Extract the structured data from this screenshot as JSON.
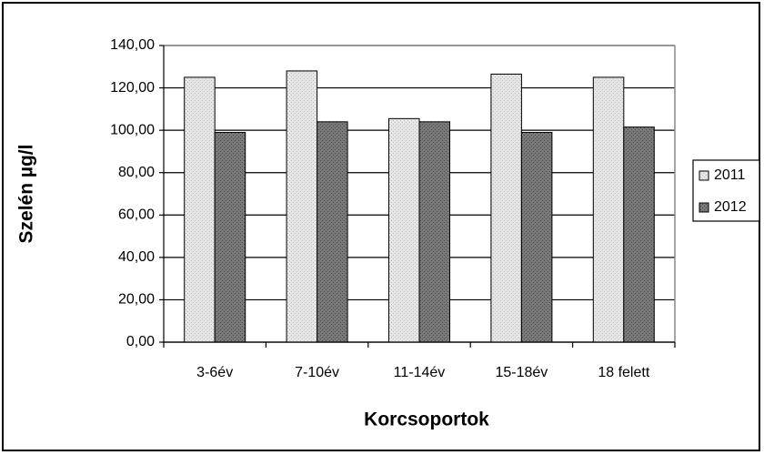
{
  "chart_data": {
    "type": "bar",
    "categories": [
      "3-6év",
      "7-10év",
      "11-14év",
      "15-18év",
      "18 felett"
    ],
    "series": [
      {
        "name": "2011",
        "color": "#e6e6e6",
        "values": [
          125,
          128,
          105.5,
          126.5,
          125
        ]
      },
      {
        "name": "2012",
        "color": "#7a7a7a",
        "values": [
          99,
          104,
          104,
          99,
          101.5
        ]
      }
    ],
    "y_label": "Szelén µg/l",
    "x_label": "Korcsoportok",
    "ylim": [
      0,
      140
    ],
    "yticks": [
      {
        "value": 0,
        "label": "0,00"
      },
      {
        "value": 20,
        "label": "20,00"
      },
      {
        "value": 40,
        "label": "40,00"
      },
      {
        "value": 60,
        "label": "60,00"
      },
      {
        "value": 80,
        "label": "80,00"
      },
      {
        "value": 100,
        "label": "100,00"
      },
      {
        "value": 120,
        "label": "120,00"
      },
      {
        "value": 140,
        "label": "140,00"
      }
    ],
    "grid": true,
    "legend": "right"
  }
}
